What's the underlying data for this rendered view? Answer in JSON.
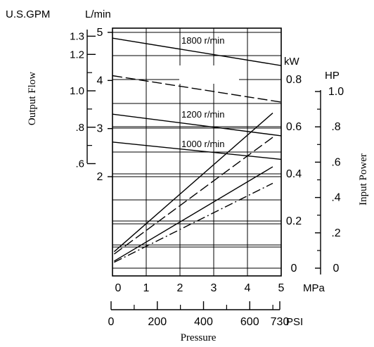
{
  "chart_data": {
    "type": "line",
    "left_axes": {
      "gpm": {
        "unit": "U.S.GPM",
        "label": "Output Flow",
        "ticks": [
          ".6",
          ".8",
          "1.0",
          "1.2",
          "1.3"
        ],
        "tick_values": [
          0.6,
          0.8,
          1.0,
          1.2,
          1.3
        ]
      },
      "lpm": {
        "unit": "L/min",
        "ticks": [
          "2",
          "3",
          "4",
          "5"
        ],
        "tick_values": [
          2,
          3,
          4,
          5
        ]
      }
    },
    "right_axes": {
      "kw": {
        "unit": "kW",
        "label": "Input Power",
        "ticks": [
          "0",
          "0.2",
          "0.4",
          "0.6",
          "0.8"
        ],
        "tick_values": [
          0,
          0.2,
          0.4,
          0.6,
          0.8
        ]
      },
      "hp": {
        "unit": "HP",
        "ticks": [
          "0",
          ".2",
          ".4",
          ".6",
          ".8",
          "1.0"
        ],
        "tick_values": [
          0,
          0.2,
          0.4,
          0.6,
          0.8,
          1.0
        ]
      }
    },
    "bottom_axes": {
      "mpa": {
        "unit": "MPa",
        "ticks": [
          "0",
          "1",
          "2",
          "3",
          "4",
          "5"
        ],
        "tick_values": [
          0,
          1,
          2,
          3,
          4,
          5
        ]
      },
      "psi": {
        "unit": "PSI",
        "label": "Pressure",
        "ticks": [
          "0",
          "200",
          "400",
          "600",
          "730"
        ],
        "tick_values": [
          0,
          200,
          400,
          600,
          730
        ]
      }
    },
    "xlim": [
      0,
      5
    ],
    "grid": true,
    "speed_labels": [
      "1800 r/min",
      "1200 r/min",
      "1000 r/min"
    ],
    "flow_curves": [
      {
        "speed": "1800 r/min",
        "style": "solid",
        "x": [
          0,
          5
        ],
        "y": [
          4.88,
          4.31
        ]
      },
      {
        "speed": "1800 r/min",
        "style": "dashed",
        "x": [
          0,
          5
        ],
        "y": [
          4.1,
          3.55
        ]
      },
      {
        "speed": "1200 r/min",
        "style": "solid",
        "x": [
          0,
          5
        ],
        "y": [
          3.3,
          2.85
        ]
      },
      {
        "speed": "1000 r/min",
        "style": "solid",
        "x": [
          0,
          5
        ],
        "y": [
          2.72,
          2.36
        ]
      }
    ],
    "power_curves": [
      {
        "style": "solid",
        "x": [
          0,
          5
        ],
        "y_kw": [
          0.07,
          0.658
        ]
      },
      {
        "style": "dashed",
        "x": [
          0,
          5
        ],
        "y_kw": [
          0.06,
          0.555
        ]
      },
      {
        "style": "solid",
        "x": [
          0,
          5
        ],
        "y_kw": [
          0.03,
          0.43
        ]
      },
      {
        "style": "dashdot",
        "x": [
          0,
          5
        ],
        "y_kw": [
          0.025,
          0.36
        ]
      }
    ]
  }
}
